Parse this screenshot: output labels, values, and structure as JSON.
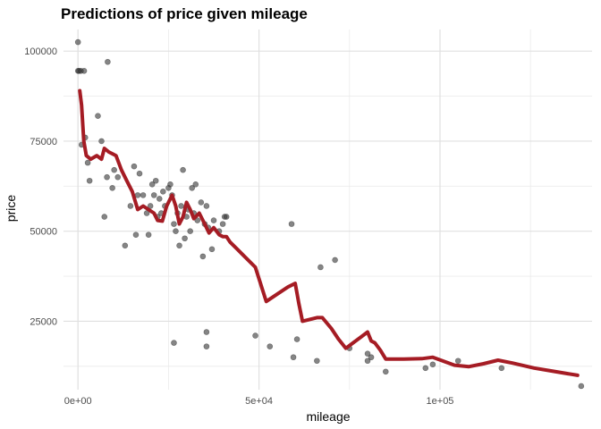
{
  "chart_data": {
    "type": "scatter",
    "title": "Predictions of price given mileage",
    "xlabel": "mileage",
    "ylabel": "price",
    "xlim": [
      -4000,
      142000
    ],
    "ylim": [
      6000,
      106000
    ],
    "x_ticks": [
      {
        "value": 0,
        "label": "0e+00"
      },
      {
        "value": 50000,
        "label": "5e+04"
      },
      {
        "value": 100000,
        "label": "1e+05"
      }
    ],
    "y_ticks": [
      {
        "value": 25000,
        "label": "25000"
      },
      {
        "value": 50000,
        "label": "50000"
      },
      {
        "value": 75000,
        "label": "75000"
      },
      {
        "value": 100000,
        "label": "100000"
      }
    ],
    "grid": true,
    "point_color": "#333333",
    "line_color": "#a51c24",
    "series": [
      {
        "type": "scatter",
        "points": [
          [
            0,
            102500
          ],
          [
            0,
            94500
          ],
          [
            300,
            94500
          ],
          [
            800,
            94500
          ],
          [
            1700,
            94500
          ],
          [
            1000,
            74000
          ],
          [
            2000,
            76000
          ],
          [
            2700,
            69000
          ],
          [
            3200,
            64000
          ],
          [
            5500,
            82000
          ],
          [
            6500,
            75000
          ],
          [
            7300,
            54000
          ],
          [
            8200,
            97000
          ],
          [
            8000,
            65000
          ],
          [
            9500,
            62000
          ],
          [
            10000,
            67000
          ],
          [
            11000,
            65000
          ],
          [
            13000,
            46000
          ],
          [
            14500,
            57000
          ],
          [
            15500,
            68000
          ],
          [
            16000,
            49000
          ],
          [
            16500,
            60000
          ],
          [
            17000,
            66000
          ],
          [
            18000,
            60000
          ],
          [
            19000,
            55000
          ],
          [
            19500,
            49000
          ],
          [
            20000,
            57000
          ],
          [
            20500,
            63000
          ],
          [
            21000,
            60000
          ],
          [
            21500,
            64000
          ],
          [
            22000,
            54000
          ],
          [
            22500,
            59000
          ],
          [
            23000,
            55000
          ],
          [
            23500,
            61000
          ],
          [
            24000,
            57000
          ],
          [
            25000,
            62000
          ],
          [
            25500,
            63000
          ],
          [
            26000,
            60000
          ],
          [
            26500,
            52000
          ],
          [
            27000,
            50000
          ],
          [
            27500,
            55000
          ],
          [
            28000,
            46000
          ],
          [
            28500,
            57000
          ],
          [
            29000,
            67000
          ],
          [
            29500,
            48000
          ],
          [
            30000,
            54000
          ],
          [
            30500,
            56000
          ],
          [
            31000,
            50000
          ],
          [
            31500,
            62000
          ],
          [
            32000,
            55000
          ],
          [
            32500,
            63000
          ],
          [
            33000,
            53000
          ],
          [
            34000,
            58000
          ],
          [
            34500,
            43000
          ],
          [
            35000,
            52000
          ],
          [
            35500,
            57000
          ],
          [
            36000,
            51000
          ],
          [
            37000,
            45000
          ],
          [
            37500,
            53000
          ],
          [
            39000,
            50000
          ],
          [
            40000,
            52000
          ],
          [
            40500,
            54000
          ],
          [
            41000,
            54000
          ],
          [
            26500,
            19000
          ],
          [
            35500,
            22000
          ],
          [
            35500,
            18000
          ],
          [
            49000,
            21000
          ],
          [
            53000,
            18000
          ],
          [
            59000,
            52000
          ],
          [
            59500,
            15000
          ],
          [
            60500,
            20000
          ],
          [
            66000,
            14000
          ],
          [
            67000,
            40000
          ],
          [
            71000,
            42000
          ],
          [
            75000,
            17500
          ],
          [
            80000,
            16000
          ],
          [
            81000,
            15000
          ],
          [
            80000,
            14000
          ],
          [
            85000,
            11000
          ],
          [
            96000,
            12000
          ],
          [
            98000,
            13000
          ],
          [
            105000,
            14000
          ],
          [
            117000,
            12000
          ],
          [
            139000,
            7000
          ]
        ]
      },
      {
        "type": "line",
        "points": [
          [
            500,
            89000
          ],
          [
            1000,
            85000
          ],
          [
            1600,
            75000
          ],
          [
            2300,
            71000
          ],
          [
            3500,
            70000
          ],
          [
            5200,
            71000
          ],
          [
            6500,
            70000
          ],
          [
            7300,
            73000
          ],
          [
            8500,
            72000
          ],
          [
            10500,
            71000
          ],
          [
            12000,
            67000
          ],
          [
            13500,
            64000
          ],
          [
            15000,
            61000
          ],
          [
            16500,
            56000
          ],
          [
            18000,
            57000
          ],
          [
            19500,
            56000
          ],
          [
            21000,
            55000
          ],
          [
            22000,
            53000
          ],
          [
            23300,
            52800
          ],
          [
            24500,
            57000
          ],
          [
            26000,
            60000
          ],
          [
            27000,
            57000
          ],
          [
            28000,
            52000
          ],
          [
            29000,
            54000
          ],
          [
            30000,
            58000
          ],
          [
            31000,
            56000
          ],
          [
            32000,
            53500
          ],
          [
            33500,
            55000
          ],
          [
            35000,
            52000
          ],
          [
            36200,
            49500
          ],
          [
            37500,
            51000
          ],
          [
            39000,
            49000
          ],
          [
            40000,
            48500
          ],
          [
            41000,
            48500
          ],
          [
            42000,
            47000
          ],
          [
            44000,
            45000
          ],
          [
            46000,
            43000
          ],
          [
            49000,
            40000
          ],
          [
            52000,
            30500
          ],
          [
            55000,
            32500
          ],
          [
            58000,
            34500
          ],
          [
            60000,
            35500
          ],
          [
            61000,
            30000
          ],
          [
            62000,
            25000
          ],
          [
            64000,
            25500
          ],
          [
            66000,
            26000
          ],
          [
            67500,
            26000
          ],
          [
            70000,
            23000
          ],
          [
            72000,
            20000
          ],
          [
            74000,
            17500
          ],
          [
            76000,
            19000
          ],
          [
            78000,
            20500
          ],
          [
            80000,
            22000
          ],
          [
            81000,
            19500
          ],
          [
            82000,
            19000
          ],
          [
            83500,
            17000
          ],
          [
            85000,
            14500
          ],
          [
            90000,
            14500
          ],
          [
            95000,
            14600
          ],
          [
            98000,
            15000
          ],
          [
            104000,
            12800
          ],
          [
            108000,
            12400
          ],
          [
            112000,
            13200
          ],
          [
            116000,
            14200
          ],
          [
            120000,
            13400
          ],
          [
            126000,
            12000
          ],
          [
            132000,
            11000
          ],
          [
            138000,
            10000
          ]
        ]
      }
    ]
  }
}
